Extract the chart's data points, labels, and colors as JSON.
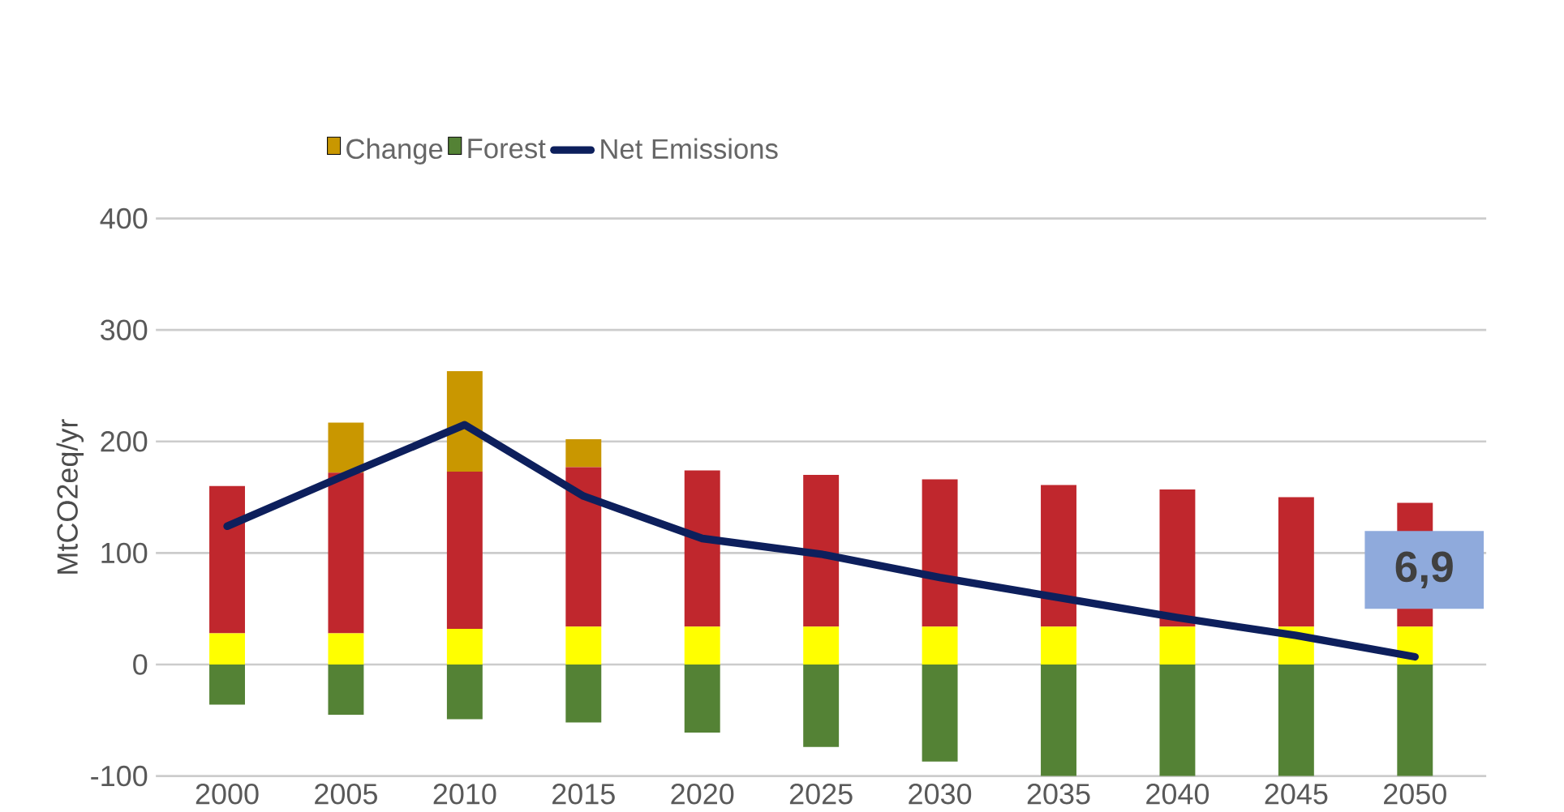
{
  "chart_data": {
    "type": "bar",
    "stacked": true,
    "ylabel": "MtCO2eq/yr",
    "categories": [
      "2000",
      "2005",
      "2010",
      "2015",
      "2020",
      "2025",
      "2030",
      "2035",
      "2040",
      "2045",
      "2050"
    ],
    "series": [
      {
        "color": "#ffff00",
        "values": [
          28,
          28,
          32,
          34,
          34,
          34,
          34,
          34,
          34,
          34,
          34
        ]
      },
      {
        "color": "#c0272d",
        "values": [
          132,
          144,
          141,
          143,
          140,
          136,
          132,
          127,
          123,
          116,
          111
        ]
      },
      {
        "name": "Change",
        "color": "#c99700",
        "values": [
          0,
          45,
          90,
          25,
          0,
          0,
          0,
          0,
          0,
          0,
          0
        ]
      },
      {
        "name": "Forest",
        "color": "#548235",
        "values": [
          -36,
          -45,
          -49,
          -52,
          -61,
          -74,
          -87,
          -100,
          -100,
          -100,
          -100
        ]
      },
      {
        "name": "Net Emissions",
        "type": "line",
        "color": "#0d1f5c",
        "values": [
          124,
          170,
          215,
          151,
          113,
          99,
          78,
          60,
          42,
          26,
          6.9
        ]
      }
    ],
    "annotations": [
      {
        "text": "6,9",
        "x": "2050",
        "y": 6.9
      }
    ],
    "ylim": [
      -100,
      400
    ],
    "yticks": [
      -100,
      0,
      100,
      200,
      300,
      400
    ],
    "grid": "y",
    "legend": "top"
  }
}
